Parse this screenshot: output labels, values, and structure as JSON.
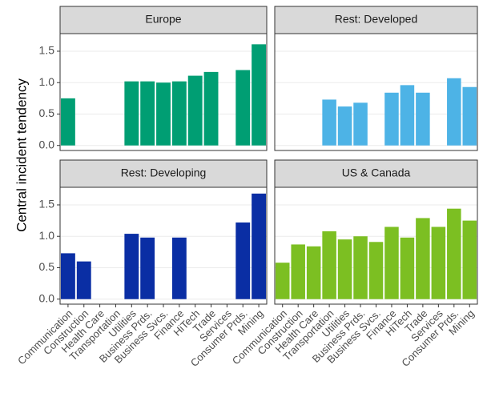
{
  "chart_data": {
    "type": "bar",
    "y_label": "Central incident tendency",
    "categories": [
      "Communication",
      "Construction",
      "Health Care",
      "Transportation",
      "Utilities",
      "Business Prds.",
      "Business Svcs.",
      "Finance",
      "HiTech",
      "Trade",
      "Services",
      "Consumer Prds.",
      "Mining"
    ],
    "ylim": [
      -0.08,
      1.78
    ],
    "yticks": [
      {
        "value": 0,
        "label": "0.0"
      },
      {
        "value": 0.5,
        "label": "0.5"
      },
      {
        "value": 1,
        "label": "1.0"
      },
      {
        "value": 1.5,
        "label": "1.5"
      }
    ],
    "grid": true,
    "series": [
      {
        "name": "Europe",
        "color": "#009e73",
        "values": [
          0.75,
          null,
          null,
          null,
          1.02,
          1.02,
          1.0,
          1.02,
          1.11,
          1.17,
          null,
          1.2,
          1.61
        ]
      },
      {
        "name": "Rest: Developed",
        "color": "#4db3e6",
        "values": [
          null,
          null,
          null,
          0.73,
          0.62,
          0.68,
          null,
          0.84,
          0.96,
          0.84,
          null,
          1.07,
          0.93
        ]
      },
      {
        "name": "Rest: Developing",
        "color": "#0a2ea4",
        "values": [
          0.73,
          0.6,
          null,
          null,
          1.04,
          0.98,
          null,
          0.98,
          null,
          null,
          null,
          1.22,
          1.68
        ]
      },
      {
        "name": "US & Canada",
        "color": "#7cbf22",
        "values": [
          0.58,
          0.87,
          0.84,
          1.08,
          0.95,
          1.0,
          0.91,
          1.15,
          0.98,
          1.29,
          1.15,
          1.44,
          1.25
        ]
      }
    ]
  }
}
